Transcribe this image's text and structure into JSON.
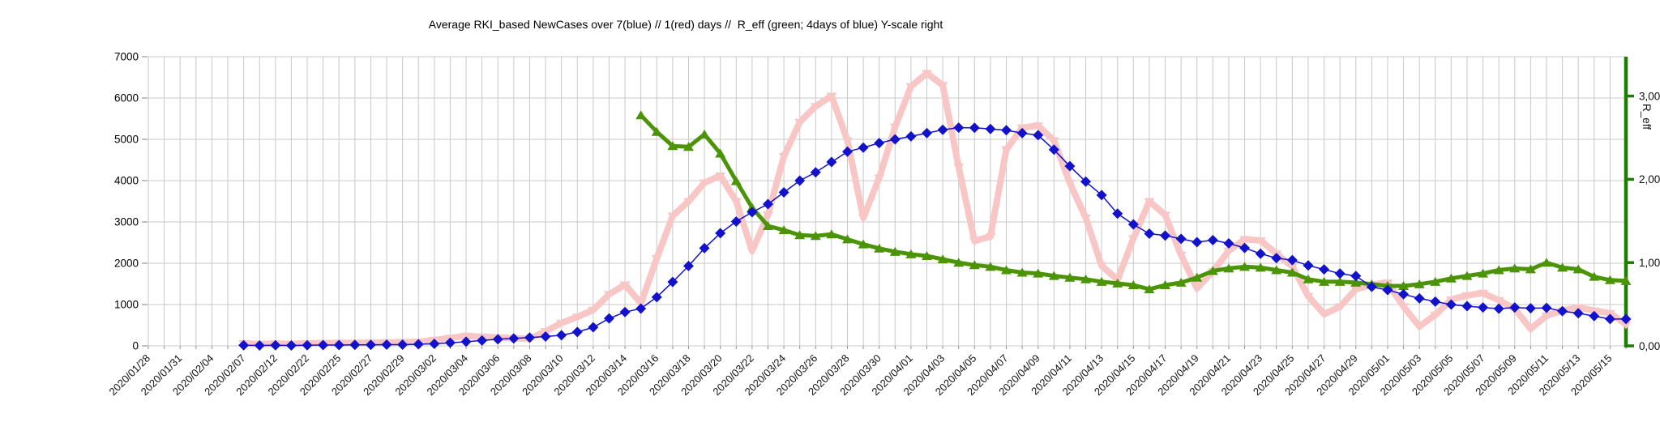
{
  "title": "Average RKI_based NewCases over 7(blue) // 1(red) days //  R_eff (green; 4days of blue) Y-scale right",
  "chart_data": {
    "type": "line",
    "title": "Average RKI_based NewCases over 7(blue) // 1(red) days //  R_eff (green; 4days of blue) Y-scale right",
    "x_axis": {
      "gridlines_total": 94,
      "labels_every_n_gridlines": 2,
      "tick_labels": [
        "2020/01/28",
        "2020/01/31",
        "2020/02/04",
        "2020/02/07",
        "2020/02/12",
        "2020/02/22",
        "2020/02/25",
        "2020/02/27",
        "2020/02/29",
        "2020/03/02",
        "2020/03/04",
        "2020/03/06",
        "2020/03/08",
        "2020/03/10",
        "2020/03/12",
        "2020/03/14",
        "2020/03/16",
        "2020/03/18",
        "2020/03/20",
        "2020/03/22",
        "2020/03/24",
        "2020/03/26",
        "2020/03/28",
        "2020/03/30",
        "2020/04/01",
        "2020/04/03",
        "2020/04/05",
        "2020/04/07",
        "2020/04/09",
        "2020/04/11",
        "2020/04/13",
        "2020/04/15",
        "2020/04/17",
        "2020/04/19",
        "2020/04/21",
        "2020/04/23",
        "2020/04/25",
        "2020/04/27",
        "2020/04/29",
        "2020/05/01",
        "2020/05/03",
        "2020/05/05",
        "2020/05/07",
        "2020/05/09",
        "2020/05/11",
        "2020/05/13",
        "2020/05/15"
      ]
    },
    "y_axis_left": {
      "min": 0,
      "max": 7000,
      "tick_labels": [
        "0",
        "1000",
        "2000",
        "3000",
        "4000",
        "5000",
        "6000",
        "7000"
      ]
    },
    "y_axis_right": {
      "title": "R_eff",
      "min": 0,
      "top_value": 3.47,
      "ticks": [
        0,
        1,
        2,
        3
      ],
      "tick_labels": [
        "0,00",
        "1,00",
        "2,00",
        "3,00"
      ],
      "axis_color": "#1b7e00"
    },
    "grid": true,
    "legend": "encoded in title",
    "series": [
      {
        "name": "NewCases 1-day (red)",
        "color": "#f9c6c6",
        "axis": "left",
        "marker": "arrow-down",
        "line_width": 8,
        "start_gridline": 6,
        "values": [
          60,
          45,
          55,
          45,
          60,
          65,
          70,
          70,
          75,
          80,
          85,
          95,
          140,
          190,
          240,
          220,
          200,
          185,
          170,
          350,
          555,
          700,
          870,
          1250,
          1480,
          1030,
          2120,
          3150,
          3500,
          3950,
          4120,
          3500,
          2300,
          3170,
          4590,
          5420,
          5800,
          6050,
          4970,
          3100,
          4070,
          5300,
          6280,
          6600,
          6310,
          4330,
          2540,
          2650,
          4750,
          5280,
          5330,
          4970,
          3940,
          3100,
          1940,
          1600,
          2600,
          3500,
          3170,
          2200,
          1390,
          1800,
          2300,
          2580,
          2550,
          2230,
          1920,
          1200,
          770,
          950,
          1370,
          1480,
          1530,
          950,
          470,
          750,
          1120,
          1220,
          1280,
          1100,
          900,
          410,
          730,
          850,
          930,
          850,
          790,
          520
        ]
      },
      {
        "name": "R_eff (green; 4 days of blue)",
        "color": "#4b9408",
        "axis": "right",
        "marker": "triangle-up",
        "line_width": 5,
        "start_gridline": 31,
        "values": [
          2.77,
          2.57,
          2.4,
          2.39,
          2.54,
          2.31,
          1.98,
          1.66,
          1.44,
          1.39,
          1.33,
          1.32,
          1.34,
          1.28,
          1.22,
          1.17,
          1.13,
          1.1,
          1.08,
          1.04,
          1.0,
          0.97,
          0.95,
          0.91,
          0.88,
          0.87,
          0.84,
          0.82,
          0.8,
          0.77,
          0.75,
          0.73,
          0.68,
          0.73,
          0.76,
          0.82,
          0.9,
          0.93,
          0.95,
          0.94,
          0.91,
          0.88,
          0.8,
          0.77,
          0.77,
          0.76,
          0.74,
          0.72,
          0.72,
          0.74,
          0.77,
          0.81,
          0.84,
          0.87,
          0.91,
          0.93,
          0.92,
          1.0,
          0.94,
          0.92,
          0.83,
          0.79,
          0.78
        ]
      },
      {
        "name": "NewCases 7-day average (blue)",
        "color": "#1212cc",
        "axis": "left",
        "marker": "diamond",
        "line_width": 1.5,
        "start_gridline": 6,
        "values": [
          15,
          10,
          15,
          10,
          15,
          20,
          20,
          25,
          25,
          30,
          30,
          40,
          50,
          75,
          100,
          130,
          160,
          180,
          200,
          225,
          257,
          335,
          450,
          663,
          818,
          903,
          1180,
          1547,
          1934,
          2365,
          2727,
          3011,
          3236,
          3431,
          3715,
          4000,
          4200,
          4450,
          4700,
          4800,
          4910,
          5000,
          5070,
          5150,
          5230,
          5283,
          5280,
          5250,
          5220,
          5150,
          5100,
          4750,
          4350,
          3975,
          3650,
          3200,
          2940,
          2715,
          2670,
          2590,
          2510,
          2560,
          2480,
          2370,
          2230,
          2125,
          2075,
          1945,
          1850,
          1750,
          1690,
          1430,
          1350,
          1250,
          1150,
          1070,
          1000,
          960,
          930,
          900,
          930,
          910,
          920,
          840,
          790,
          720,
          650,
          650
        ]
      }
    ]
  }
}
